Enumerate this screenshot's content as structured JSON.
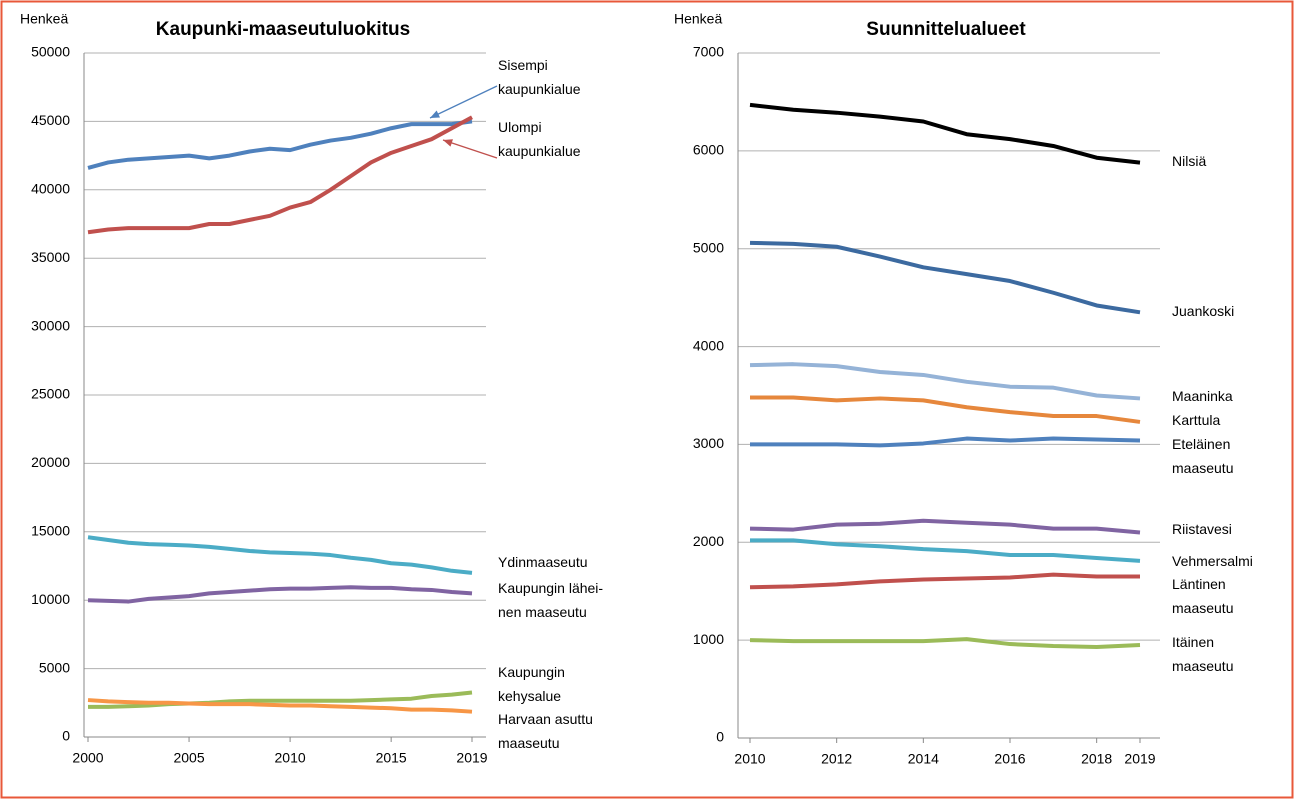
{
  "chart_data": [
    {
      "type": "line",
      "title": "Kaupunki-maaseutuluokitus",
      "y_label": "Henkeä",
      "x": [
        2000,
        2001,
        2002,
        2003,
        2004,
        2005,
        2006,
        2007,
        2008,
        2009,
        2010,
        2011,
        2012,
        2013,
        2014,
        2015,
        2016,
        2017,
        2018,
        2019
      ],
      "xlim": [
        2000,
        2019
      ],
      "xticks": [
        2000,
        2005,
        2010,
        2015,
        2019
      ],
      "ylim": [
        0,
        50000
      ],
      "yticks": [
        0,
        5000,
        10000,
        15000,
        20000,
        25000,
        30000,
        35000,
        40000,
        45000,
        50000
      ],
      "grid": true,
      "series": [
        {
          "name": "Sisempi\nkaupunkialue",
          "color": "#4f81bd",
          "values": [
            41600,
            42000,
            42200,
            42300,
            42400,
            42500,
            42300,
            42500,
            42800,
            43000,
            42900,
            43300,
            43600,
            43800,
            44100,
            44500,
            44800,
            44800,
            44800,
            45000
          ]
        },
        {
          "name": "Ulompi\nkaupunkialue",
          "color": "#c0504d",
          "values": [
            36900,
            37100,
            37200,
            37200,
            37200,
            37200,
            37500,
            37500,
            37800,
            38100,
            38700,
            39100,
            40000,
            41000,
            42000,
            42700,
            43200,
            43700,
            44500,
            45300
          ]
        },
        {
          "name": "Ydinmaaseutu",
          "color": "#4bacc6",
          "values": [
            14600,
            14400,
            14200,
            14100,
            14050,
            14000,
            13900,
            13750,
            13600,
            13500,
            13450,
            13400,
            13300,
            13100,
            12950,
            12700,
            12600,
            12400,
            12150,
            12000
          ]
        },
        {
          "name": "Kaupungin lähei-\nnen maaseutu",
          "color": "#8064a2",
          "values": [
            10000,
            9950,
            9900,
            10100,
            10200,
            10300,
            10500,
            10600,
            10700,
            10800,
            10850,
            10850,
            10900,
            10950,
            10900,
            10900,
            10800,
            10750,
            10600,
            10500
          ]
        },
        {
          "name": "Kaupungin\nkehysalue",
          "color": "#9bbb59",
          "values": [
            2200,
            2200,
            2250,
            2300,
            2400,
            2450,
            2500,
            2600,
            2650,
            2650,
            2650,
            2650,
            2650,
            2650,
            2700,
            2750,
            2800,
            3000,
            3100,
            3250
          ]
        },
        {
          "name": "Harvaan asuttu\nmaaseutu",
          "color": "#f79646",
          "values": [
            2700,
            2600,
            2550,
            2500,
            2500,
            2450,
            2400,
            2400,
            2400,
            2350,
            2300,
            2300,
            2250,
            2200,
            2150,
            2100,
            2000,
            2000,
            1950,
            1850
          ]
        }
      ]
    },
    {
      "type": "line",
      "title": "Suunnittelualueet",
      "y_label": "Henkeä",
      "x": [
        2010,
        2011,
        2012,
        2013,
        2014,
        2015,
        2016,
        2017,
        2018,
        2019
      ],
      "xlim": [
        2010,
        2019
      ],
      "xticks": [
        2010,
        2012,
        2014,
        2016,
        2018,
        2019
      ],
      "ylim": [
        0,
        7000
      ],
      "yticks": [
        0,
        1000,
        2000,
        3000,
        4000,
        5000,
        6000,
        7000
      ],
      "grid": true,
      "series": [
        {
          "name": "Nilsiä",
          "color": "#000000",
          "values": [
            6470,
            6420,
            6390,
            6350,
            6300,
            6170,
            6120,
            6050,
            5930,
            5880
          ]
        },
        {
          "name": "Juankoski",
          "color": "#3c6aa0",
          "values": [
            5060,
            5050,
            5020,
            4920,
            4810,
            4740,
            4670,
            4550,
            4420,
            4350
          ]
        },
        {
          "name": "Maaninka",
          "color": "#95b3d7",
          "values": [
            3810,
            3820,
            3800,
            3740,
            3710,
            3640,
            3590,
            3580,
            3500,
            3470
          ]
        },
        {
          "name": "Karttula",
          "color": "#e6873c",
          "values": [
            3480,
            3480,
            3450,
            3470,
            3450,
            3380,
            3330,
            3290,
            3290,
            3230
          ]
        },
        {
          "name": "Eteläinen\nmaaseutu",
          "color": "#4f81bd",
          "values": [
            3000,
            3000,
            3000,
            2990,
            3010,
            3060,
            3040,
            3060,
            3050,
            3040
          ]
        },
        {
          "name": "Riistavesi",
          "color": "#8064a2",
          "values": [
            2140,
            2130,
            2180,
            2190,
            2220,
            2200,
            2180,
            2140,
            2140,
            2100
          ]
        },
        {
          "name": "Vehmersalmi",
          "color": "#4bacc6",
          "values": [
            2020,
            2020,
            1980,
            1960,
            1930,
            1910,
            1870,
            1870,
            1840,
            1810
          ]
        },
        {
          "name": "Läntinen\nmaaseutu",
          "color": "#c0504d",
          "values": [
            1540,
            1550,
            1570,
            1600,
            1620,
            1630,
            1640,
            1670,
            1650,
            1650
          ]
        },
        {
          "name": "Itäinen\nmaaseutu",
          "color": "#9bbb59",
          "values": [
            1000,
            990,
            990,
            990,
            990,
            1010,
            960,
            940,
            930,
            950
          ]
        }
      ]
    }
  ]
}
